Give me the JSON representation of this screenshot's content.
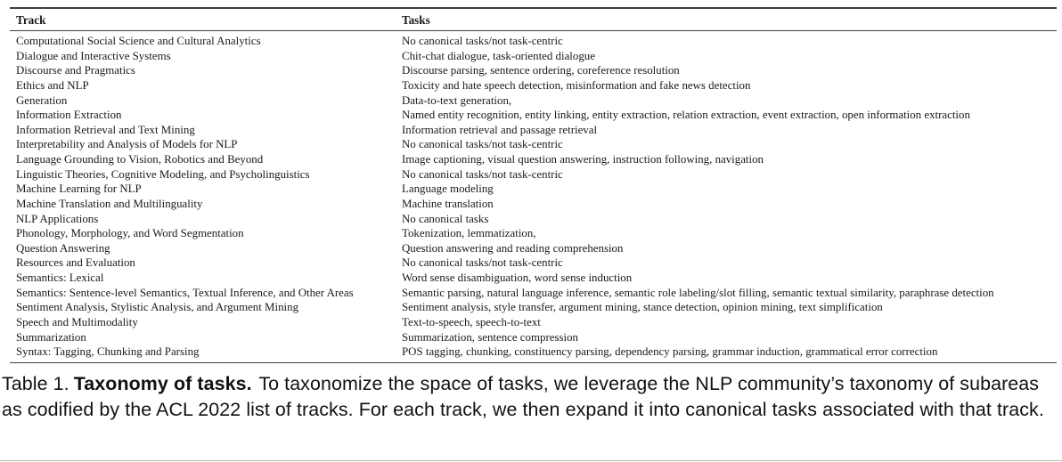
{
  "table": {
    "headers": [
      "Track",
      "Tasks"
    ],
    "rows": [
      {
        "track": "Computational Social Science and Cultural Analytics",
        "tasks": "No canonical tasks/not task-centric"
      },
      {
        "track": "Dialogue and Interactive Systems",
        "tasks": "Chit-chat dialogue, task-oriented dialogue"
      },
      {
        "track": "Discourse and Pragmatics",
        "tasks": "Discourse parsing, sentence ordering, coreference resolution"
      },
      {
        "track": "Ethics and NLP",
        "tasks": "Toxicity and hate speech detection, misinformation and fake news detection"
      },
      {
        "track": "Generation",
        "tasks": "Data-to-text generation,"
      },
      {
        "track": "Information Extraction",
        "tasks": "Named entity recognition, entity linking, entity extraction, relation extraction, event extraction, open information extraction"
      },
      {
        "track": "Information Retrieval and Text Mining",
        "tasks": "Information retrieval and passage retrieval"
      },
      {
        "track": "Interpretability and Analysis of Models for NLP",
        "tasks": "No canonical tasks/not task-centric"
      },
      {
        "track": "Language Grounding to Vision, Robotics and Beyond",
        "tasks": "Image captioning, visual question answering, instruction following, navigation"
      },
      {
        "track": "Linguistic Theories, Cognitive Modeling, and Psycholinguistics",
        "tasks": "No canonical tasks/not task-centric"
      },
      {
        "track": "Machine Learning for NLP",
        "tasks": "Language modeling"
      },
      {
        "track": "Machine Translation and Multilinguality",
        "tasks": "Machine translation"
      },
      {
        "track": "NLP Applications",
        "tasks": "No canonical tasks"
      },
      {
        "track": "Phonology, Morphology, and Word Segmentation",
        "tasks": "Tokenization, lemmatization,"
      },
      {
        "track": "Question Answering",
        "tasks": "Question answering and reading comprehension"
      },
      {
        "track": "Resources and Evaluation",
        "tasks": "No canonical tasks/not task-centric"
      },
      {
        "track": "Semantics: Lexical",
        "tasks": "Word sense disambiguation, word sense induction"
      },
      {
        "track": "Semantics: Sentence-level Semantics, Textual Inference, and Other Areas",
        "tasks": "Semantic parsing, natural language inference, semantic role labeling/slot filling, semantic textual similarity, paraphrase detection"
      },
      {
        "track": "Sentiment Analysis, Stylistic Analysis, and Argument Mining",
        "tasks": "Sentiment analysis, style transfer, argument mining, stance detection, opinion mining, text simplification"
      },
      {
        "track": "Speech and Multimodality",
        "tasks": "Text-to-speech, speech-to-text"
      },
      {
        "track": "Summarization",
        "tasks": "Summarization, sentence compression"
      },
      {
        "track": "Syntax: Tagging, Chunking and Parsing",
        "tasks": "POS tagging, chunking, constituency parsing, dependency parsing, grammar induction, grammatical error correction"
      }
    ]
  },
  "caption": {
    "label": "Table 1.",
    "title": "Taxonomy of tasks.",
    "body": "To taxonomize the space of tasks, we leverage the NLP community’s taxonomy of subareas as codified by the ACL 2022 list of tracks. For each track, we then expand it into canonical tasks associated with that track."
  },
  "colors": {
    "text": "#1a1a1a",
    "table_rule": "#3f3f3f",
    "bottom_divider": "#bdbdbd"
  }
}
